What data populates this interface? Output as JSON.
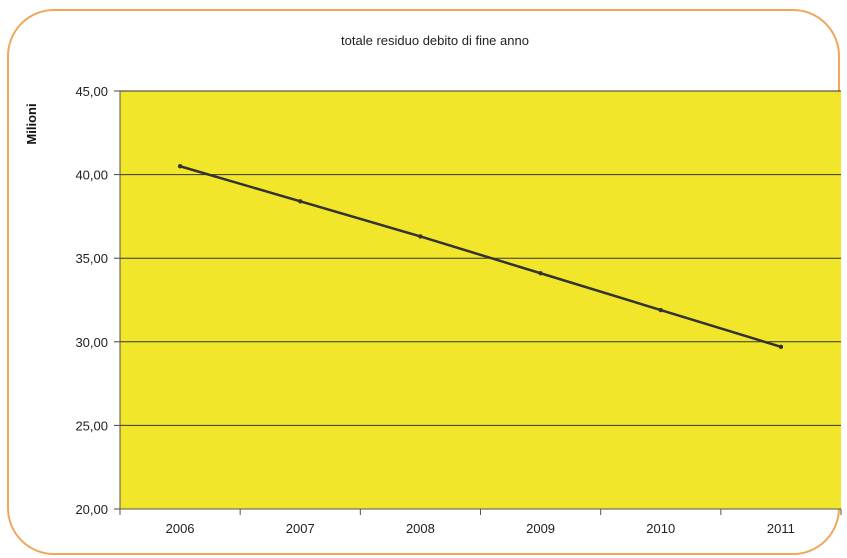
{
  "colors": {
    "border": "#f2a65a",
    "plot_background": "#f2e62a",
    "gridline": "#333333",
    "line": "#333333"
  },
  "chart_data": {
    "type": "line",
    "title": "totale residuo debito di  fine anno",
    "xlabel": "",
    "ylabel": "Milioni",
    "categories": [
      "2006",
      "2007",
      "2008",
      "2009",
      "2010",
      "2011"
    ],
    "series": [
      {
        "values": [
          40.5,
          38.4,
          36.3,
          34.1,
          31.9,
          29.7
        ]
      }
    ],
    "ylim": [
      20,
      45
    ],
    "yticks": [
      "20,00",
      "25,00",
      "30,00",
      "35,00",
      "40,00",
      "45,00"
    ],
    "grid": true,
    "legend": "none"
  }
}
